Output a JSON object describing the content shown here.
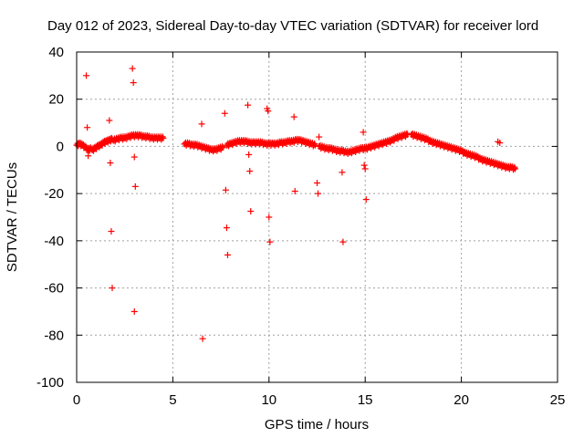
{
  "chart_data": {
    "type": "scatter",
    "title": "Day 012 of 2023, Sidereal Day-to-day VTEC variation (SDTVAR) for receiver lord",
    "xlabel": "GPS time / hours",
    "ylabel": "SDTVAR / TECUs",
    "xlim": [
      0,
      25
    ],
    "ylim": [
      -100,
      40
    ],
    "xticks": [
      0,
      5,
      10,
      15,
      20,
      25
    ],
    "yticks": [
      40,
      20,
      0,
      -20,
      -40,
      -60,
      -80,
      -100
    ],
    "grid": true,
    "marker": "+",
    "color": "#ff0000",
    "dense_segments": [
      {
        "x": [
          0.0,
          0.15,
          0.3,
          0.45,
          0.6,
          0.75
        ],
        "y": [
          0.5,
          1.0,
          0.5,
          -0.5,
          -1.5,
          -1.0
        ]
      },
      {
        "x": [
          0.8,
          0.95,
          1.1,
          1.25,
          1.4,
          1.55,
          1.7,
          1.85
        ],
        "y": [
          -1.5,
          -1.0,
          0.0,
          0.5,
          1.5,
          2.0,
          2.5,
          3.0
        ]
      },
      {
        "x": [
          1.9,
          2.1,
          2.3,
          2.5,
          2.7,
          2.9,
          3.1,
          3.3,
          3.5,
          3.7,
          3.9,
          4.1,
          4.3,
          4.5
        ],
        "y": [
          2.5,
          3.0,
          3.5,
          3.5,
          4.0,
          4.5,
          4.5,
          4.5,
          4.0,
          4.0,
          3.5,
          3.5,
          3.5,
          3.5
        ]
      },
      {
        "x": [
          5.6,
          5.8,
          6.0,
          6.2,
          6.4,
          6.6,
          6.8,
          7.0,
          7.2,
          7.4,
          7.6
        ],
        "y": [
          1.0,
          1.0,
          0.5,
          0.5,
          0.0,
          -0.5,
          -1.0,
          -1.5,
          -1.5,
          -1.0,
          -0.5
        ]
      },
      {
        "x": [
          7.8,
          8.0,
          8.2,
          8.4,
          8.6,
          8.8,
          9.0,
          9.2,
          9.4,
          9.6,
          9.8,
          10.0,
          10.2,
          10.4,
          10.6,
          10.8,
          11.0,
          11.2,
          11.4,
          11.6,
          11.8,
          12.0,
          12.2,
          12.4
        ],
        "y": [
          0.5,
          1.0,
          1.5,
          2.0,
          2.0,
          2.0,
          1.5,
          1.5,
          1.5,
          1.5,
          1.0,
          1.0,
          1.0,
          1.0,
          1.5,
          1.5,
          2.0,
          2.0,
          2.5,
          2.5,
          2.0,
          1.5,
          1.0,
          0.5
        ]
      },
      {
        "x": [
          12.6,
          12.8,
          13.0,
          13.2,
          13.4,
          13.6,
          13.8,
          14.0,
          14.2,
          14.4,
          14.6,
          14.8,
          15.0,
          15.2,
          15.4,
          15.6,
          15.8,
          16.0,
          16.2,
          16.4,
          16.6,
          16.8,
          17.0,
          17.2
        ],
        "y": [
          0.0,
          -0.5,
          -1.0,
          -1.0,
          -1.5,
          -2.0,
          -2.0,
          -2.5,
          -2.5,
          -2.0,
          -1.5,
          -1.0,
          -1.0,
          -0.5,
          0.0,
          0.5,
          1.0,
          1.5,
          2.0,
          2.5,
          3.5,
          4.0,
          4.5,
          5.0
        ]
      },
      {
        "x": [
          17.4,
          17.6,
          17.8,
          18.0,
          18.2,
          18.4,
          18.6,
          18.8,
          19.0,
          19.2,
          19.4,
          19.6,
          19.8,
          20.0,
          20.2,
          20.4,
          20.6,
          20.8,
          21.0,
          21.2,
          21.4,
          21.6,
          21.8,
          22.0,
          22.2,
          22.4,
          22.6,
          22.8
        ],
        "y": [
          5.0,
          4.5,
          4.0,
          3.5,
          3.0,
          2.0,
          1.5,
          1.0,
          0.5,
          0.0,
          -0.5,
          -1.0,
          -1.5,
          -2.0,
          -3.0,
          -3.5,
          -4.0,
          -4.5,
          -5.5,
          -6.0,
          -6.5,
          -7.0,
          -7.5,
          -8.0,
          -8.5,
          -9.0,
          -9.0,
          -9.5
        ]
      }
    ],
    "outliers": {
      "x": [
        0.5,
        0.55,
        0.6,
        1.7,
        1.75,
        1.8,
        1.85,
        2.9,
        2.95,
        3.0,
        3.05,
        3.0,
        6.5,
        6.55,
        7.7,
        7.75,
        7.8,
        7.85,
        8.9,
        8.95,
        9.0,
        9.05,
        9.9,
        9.95,
        10.0,
        10.05,
        11.3,
        11.35,
        12.5,
        12.55,
        12.6,
        13.8,
        13.85,
        14.9,
        14.95,
        15.0,
        15.05,
        21.9,
        22.0
      ],
      "y": [
        30,
        8,
        -4,
        11,
        -7,
        -36,
        -60,
        33,
        27,
        -4.5,
        -17,
        -70,
        9.5,
        -81.5,
        14,
        -18.5,
        -34.5,
        -46,
        17.5,
        -3.5,
        -10.5,
        -27.5,
        16,
        15,
        -30,
        -40.5,
        12.5,
        -19,
        -15.5,
        -20,
        4,
        -11,
        -40.5,
        6,
        -8,
        -9.5,
        -22.5,
        2,
        1.5
      ]
    }
  }
}
